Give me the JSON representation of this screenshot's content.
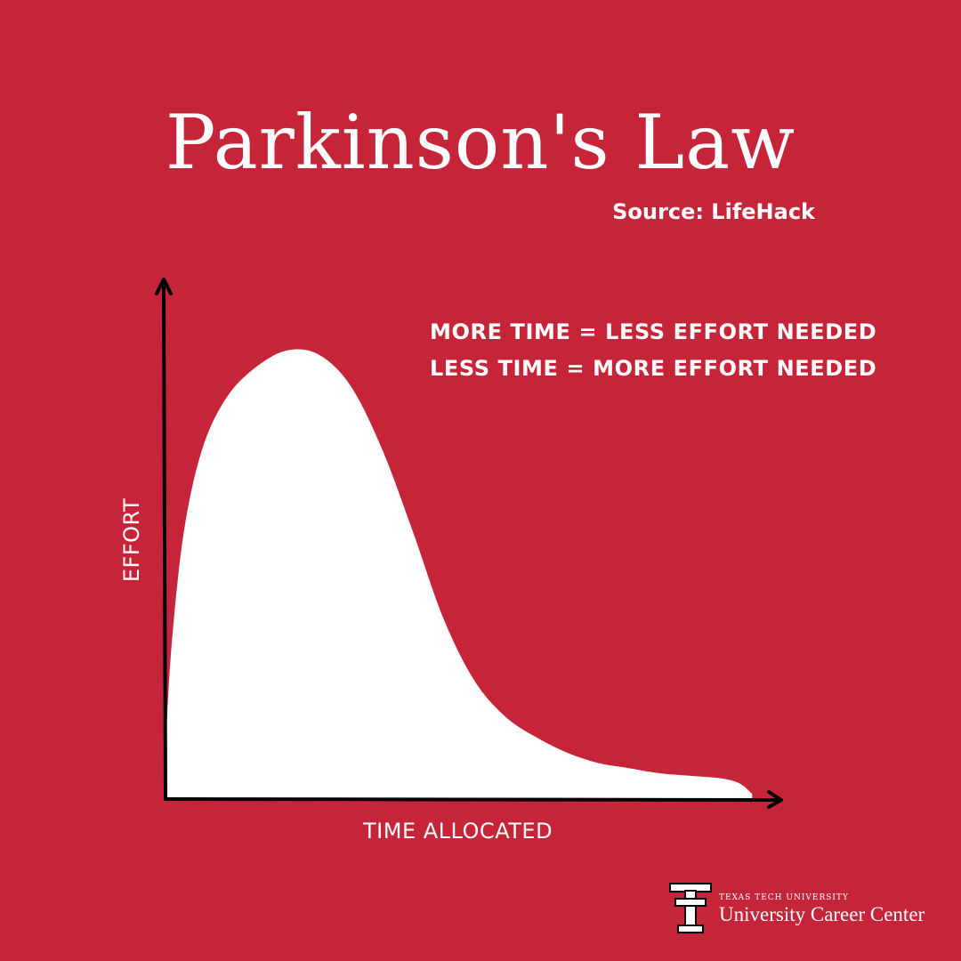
{
  "header": {
    "title": "Parkinson's Law",
    "source": "Source: LifeHack"
  },
  "taglines": [
    "MORE TIME = LESS EFFORT NEEDED",
    "LESS TIME = MORE EFFORT NEEDED"
  ],
  "colors": {
    "background": "#c62539",
    "curve_fill": "#ffffff",
    "axis": "#000000",
    "text": "#ffffff"
  },
  "chart_data": {
    "type": "area",
    "xlabel": "TIME ALLOCATED",
    "ylabel": "EFFORT",
    "xlim": [
      0,
      100
    ],
    "ylim": [
      0,
      100
    ],
    "grid": false,
    "legend": "none",
    "axis_ticks": false,
    "x": [
      0,
      1,
      3,
      6,
      10,
      15,
      20,
      25,
      30,
      35,
      40,
      45,
      50,
      55,
      60,
      65,
      70,
      75,
      80,
      85,
      90,
      93,
      95
    ],
    "y": [
      10,
      30,
      52,
      68,
      78,
      84,
      87,
      86,
      80,
      68,
      52,
      35,
      23,
      16,
      12,
      9,
      7,
      6,
      5,
      4.5,
      4,
      3,
      1
    ]
  },
  "logo": {
    "icon": "double-t-icon",
    "small_text": "TEXAS TECH UNIVERSITY",
    "name": "University Career Center"
  }
}
